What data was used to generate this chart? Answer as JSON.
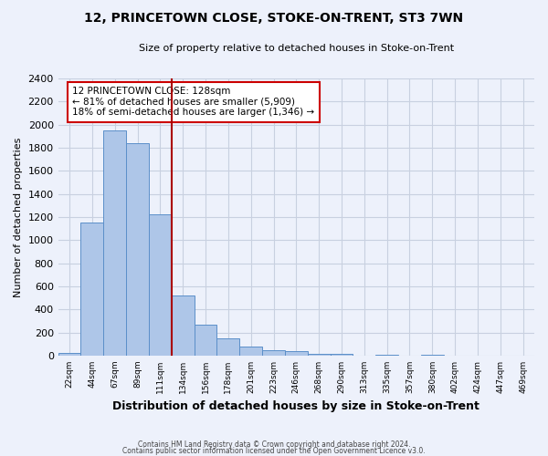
{
  "title": "12, PRINCETOWN CLOSE, STOKE-ON-TRENT, ST3 7WN",
  "subtitle": "Size of property relative to detached houses in Stoke-on-Trent",
  "xlabel": "Distribution of detached houses by size in Stoke-on-Trent",
  "ylabel": "Number of detached properties",
  "bar_labels": [
    "22sqm",
    "44sqm",
    "67sqm",
    "89sqm",
    "111sqm",
    "134sqm",
    "156sqm",
    "178sqm",
    "201sqm",
    "223sqm",
    "246sqm",
    "268sqm",
    "290sqm",
    "313sqm",
    "335sqm",
    "357sqm",
    "380sqm",
    "402sqm",
    "424sqm",
    "447sqm",
    "469sqm"
  ],
  "bar_values": [
    25,
    1155,
    1950,
    1840,
    1220,
    520,
    265,
    148,
    80,
    48,
    38,
    15,
    14,
    0,
    10,
    0,
    5,
    0,
    3,
    0,
    2
  ],
  "bar_color": "#aec6e8",
  "bar_edgecolor": "#5b8fc9",
  "vline_x_index": 5,
  "vline_color": "#aa0000",
  "ylim": [
    0,
    2400
  ],
  "yticks": [
    0,
    200,
    400,
    600,
    800,
    1000,
    1200,
    1400,
    1600,
    1800,
    2000,
    2200,
    2400
  ],
  "annotation_title": "12 PRINCETOWN CLOSE: 128sqm",
  "annotation_line1": "← 81% of detached houses are smaller (5,909)",
  "annotation_line2": "18% of semi-detached houses are larger (1,346) →",
  "annotation_bbox_edgecolor": "#cc0000",
  "footnote1": "Contains HM Land Registry data © Crown copyright and database right 2024.",
  "footnote2": "Contains public sector information licensed under the Open Government Licence v3.0.",
  "bg_color": "#edf1fb",
  "grid_color": "#c8d0e0"
}
